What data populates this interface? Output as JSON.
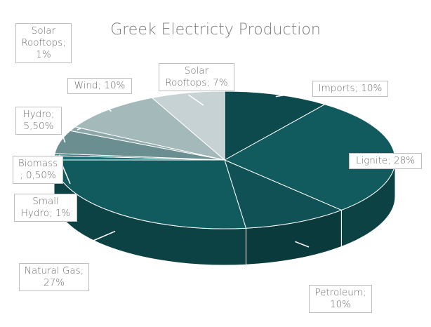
{
  "chart_data": {
    "type": "pie",
    "title": "Greek Electricty Production",
    "values": [
      10,
      28,
      10,
      27,
      1,
      0.5,
      5.5,
      1,
      10,
      7
    ],
    "value_labels": [
      "Imports; 10%",
      "Lignite; 28%",
      "Petroleum; 10%",
      "Natural Gas; 27%",
      "Small Hydro; 1%",
      "Biomass ; 0,50%",
      "Hydro; 5,50%",
      "Solar Rooftops; 1%",
      "Wind; 10%",
      "Solar Rooftops; 7%"
    ],
    "colors": [
      "#0c4a4d",
      "#115b5f",
      "#0f5155",
      "#115b5f",
      "#177075",
      "#3f7c80",
      "#6b8f91",
      "#8ea7a8",
      "#a4b9ba",
      "#c6d2d3"
    ]
  }
}
